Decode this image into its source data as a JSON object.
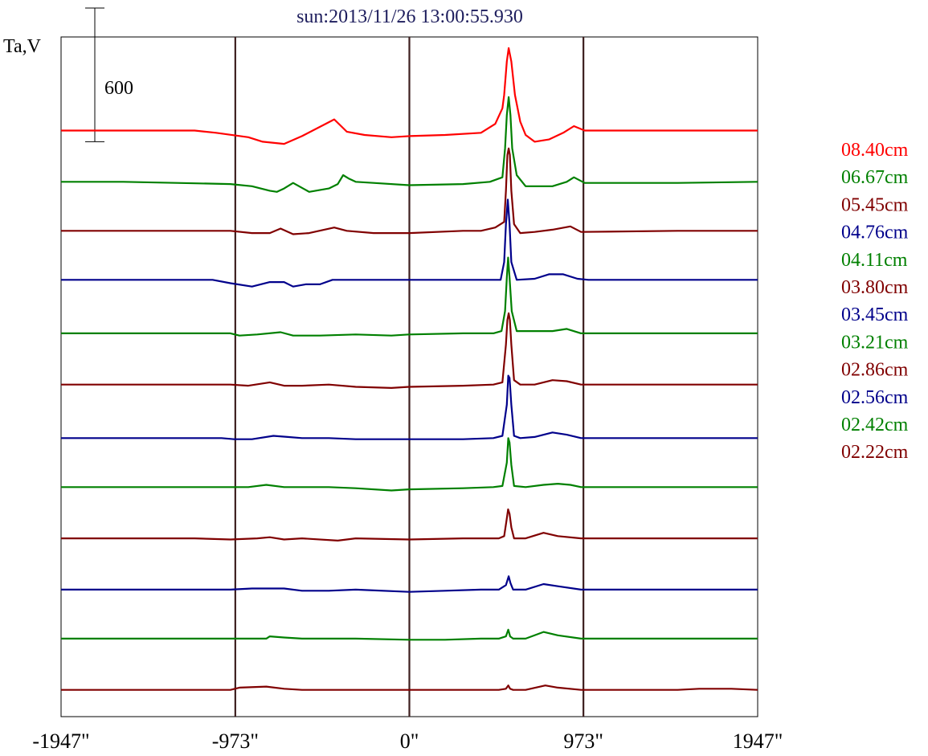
{
  "chart_data": {
    "type": "line",
    "title": "sun:2013/11/26 13:00:55.930",
    "ylabel": "Ta,V",
    "xlabel": "",
    "xlim": [
      -1947,
      1947
    ],
    "x_tick_values": [
      -1947,
      -973,
      0,
      973,
      1947
    ],
    "x_tick_labels": [
      "-1947\"",
      "-973\"",
      "0\"",
      "973\"",
      "1947\""
    ],
    "vertical_markers": [
      -973,
      0,
      973
    ],
    "scale_bar": {
      "label": "600",
      "value": 600
    },
    "grid": false,
    "legend_position": "right",
    "offset_step": 230,
    "ylim": [
      -100,
      2950
    ],
    "series": [
      {
        "name": "08.40cm",
        "color": "#ff0000",
        "offset": 2530,
        "points": [
          [
            -1947,
            0
          ],
          [
            -1200,
            0
          ],
          [
            -1080,
            -10
          ],
          [
            -900,
            -30
          ],
          [
            -820,
            -50
          ],
          [
            -700,
            -60
          ],
          [
            -600,
            -25
          ],
          [
            -420,
            50
          ],
          [
            -350,
            -5
          ],
          [
            -250,
            -20
          ],
          [
            -100,
            -30
          ],
          [
            0,
            -25
          ],
          [
            200,
            -20
          ],
          [
            400,
            -10
          ],
          [
            480,
            30
          ],
          [
            520,
            100
          ],
          [
            530,
            160
          ],
          [
            545,
            310
          ],
          [
            555,
            370
          ],
          [
            570,
            310
          ],
          [
            590,
            160
          ],
          [
            620,
            40
          ],
          [
            650,
            -20
          ],
          [
            700,
            -50
          ],
          [
            780,
            -40
          ],
          [
            860,
            -10
          ],
          [
            920,
            20
          ],
          [
            980,
            0
          ],
          [
            1500,
            0
          ],
          [
            1947,
            0
          ]
        ]
      },
      {
        "name": "06.67cm",
        "color": "#008000",
        "offset": 2300,
        "points": [
          [
            -1947,
            0
          ],
          [
            -1600,
            0
          ],
          [
            -1300,
            -5
          ],
          [
            -1000,
            -10
          ],
          [
            -880,
            -20
          ],
          [
            -780,
            -40
          ],
          [
            -740,
            -45
          ],
          [
            -700,
            -30
          ],
          [
            -650,
            -5
          ],
          [
            -560,
            -45
          ],
          [
            -450,
            -30
          ],
          [
            -400,
            -10
          ],
          [
            -370,
            30
          ],
          [
            -340,
            15
          ],
          [
            -300,
            0
          ],
          [
            -200,
            -5
          ],
          [
            0,
            -15
          ],
          [
            300,
            -10
          ],
          [
            450,
            0
          ],
          [
            520,
            20
          ],
          [
            535,
            150
          ],
          [
            545,
            300
          ],
          [
            555,
            380
          ],
          [
            565,
            300
          ],
          [
            575,
            150
          ],
          [
            600,
            30
          ],
          [
            650,
            -20
          ],
          [
            700,
            -20
          ],
          [
            800,
            -20
          ],
          [
            880,
            0
          ],
          [
            920,
            20
          ],
          [
            980,
            -5
          ],
          [
            1500,
            -5
          ],
          [
            1947,
            0
          ]
        ]
      },
      {
        "name": "05.45cm",
        "color": "#800000",
        "offset": 2080,
        "points": [
          [
            -1947,
            0
          ],
          [
            -1000,
            0
          ],
          [
            -880,
            -10
          ],
          [
            -780,
            -10
          ],
          [
            -720,
            10
          ],
          [
            -650,
            -15
          ],
          [
            -560,
            -10
          ],
          [
            -420,
            15
          ],
          [
            -350,
            0
          ],
          [
            -200,
            -10
          ],
          [
            0,
            -10
          ],
          [
            300,
            0
          ],
          [
            400,
            0
          ],
          [
            480,
            15
          ],
          [
            530,
            40
          ],
          [
            540,
            180
          ],
          [
            548,
            340
          ],
          [
            555,
            370
          ],
          [
            562,
            340
          ],
          [
            570,
            180
          ],
          [
            585,
            30
          ],
          [
            620,
            -10
          ],
          [
            700,
            -5
          ],
          [
            800,
            5
          ],
          [
            900,
            20
          ],
          [
            960,
            -5
          ],
          [
            1500,
            0
          ],
          [
            1947,
            0
          ]
        ]
      },
      {
        "name": "04.76cm",
        "color": "#00008b",
        "offset": 1860,
        "points": [
          [
            -1947,
            0
          ],
          [
            -1100,
            0
          ],
          [
            -1000,
            -15
          ],
          [
            -880,
            -30
          ],
          [
            -780,
            -10
          ],
          [
            -700,
            -10
          ],
          [
            -650,
            -30
          ],
          [
            -580,
            -20
          ],
          [
            -500,
            -20
          ],
          [
            -430,
            0
          ],
          [
            -400,
            0
          ],
          [
            0,
            0
          ],
          [
            300,
            0
          ],
          [
            420,
            0
          ],
          [
            510,
            0
          ],
          [
            530,
            80
          ],
          [
            540,
            250
          ],
          [
            550,
            360
          ],
          [
            560,
            250
          ],
          [
            570,
            80
          ],
          [
            600,
            0
          ],
          [
            700,
            5
          ],
          [
            780,
            25
          ],
          [
            860,
            25
          ],
          [
            940,
            5
          ],
          [
            1000,
            0
          ],
          [
            1500,
            0
          ],
          [
            1947,
            0
          ]
        ]
      },
      {
        "name": "04.11cm",
        "color": "#008000",
        "offset": 1620,
        "points": [
          [
            -1947,
            0
          ],
          [
            -1000,
            0
          ],
          [
            -950,
            -10
          ],
          [
            -850,
            -5
          ],
          [
            -720,
            5
          ],
          [
            -650,
            -10
          ],
          [
            -500,
            -10
          ],
          [
            -300,
            -5
          ],
          [
            -100,
            -10
          ],
          [
            0,
            -5
          ],
          [
            300,
            0
          ],
          [
            470,
            0
          ],
          [
            515,
            10
          ],
          [
            535,
            100
          ],
          [
            545,
            250
          ],
          [
            552,
            340
          ],
          [
            560,
            250
          ],
          [
            572,
            100
          ],
          [
            600,
            10
          ],
          [
            700,
            10
          ],
          [
            800,
            10
          ],
          [
            880,
            20
          ],
          [
            960,
            0
          ],
          [
            1500,
            0
          ],
          [
            1947,
            0
          ]
        ]
      },
      {
        "name": "03.80cm",
        "color": "#800000",
        "offset": 1390,
        "points": [
          [
            -1947,
            0
          ],
          [
            -1000,
            0
          ],
          [
            -900,
            -5
          ],
          [
            -780,
            10
          ],
          [
            -700,
            -5
          ],
          [
            -600,
            -5
          ],
          [
            -450,
            0
          ],
          [
            -300,
            -10
          ],
          [
            -100,
            -15
          ],
          [
            0,
            -10
          ],
          [
            300,
            -5
          ],
          [
            470,
            0
          ],
          [
            520,
            10
          ],
          [
            540,
            180
          ],
          [
            548,
            290
          ],
          [
            555,
            320
          ],
          [
            562,
            290
          ],
          [
            570,
            180
          ],
          [
            585,
            20
          ],
          [
            620,
            0
          ],
          [
            700,
            0
          ],
          [
            800,
            20
          ],
          [
            880,
            15
          ],
          [
            960,
            0
          ],
          [
            1500,
            0
          ],
          [
            1947,
            0
          ]
        ]
      },
      {
        "name": "03.45cm",
        "color": "#00008b",
        "offset": 1150,
        "points": [
          [
            -1947,
            0
          ],
          [
            -1050,
            0
          ],
          [
            -980,
            -5
          ],
          [
            -880,
            -5
          ],
          [
            -760,
            10
          ],
          [
            -680,
            5
          ],
          [
            -600,
            0
          ],
          [
            -450,
            0
          ],
          [
            -300,
            -5
          ],
          [
            0,
            -5
          ],
          [
            300,
            -5
          ],
          [
            470,
            0
          ],
          [
            520,
            10
          ],
          [
            545,
            150
          ],
          [
            553,
            280
          ],
          [
            560,
            270
          ],
          [
            570,
            150
          ],
          [
            585,
            10
          ],
          [
            620,
            0
          ],
          [
            700,
            5
          ],
          [
            800,
            25
          ],
          [
            880,
            15
          ],
          [
            960,
            0
          ],
          [
            1500,
            0
          ],
          [
            1947,
            0
          ]
        ]
      },
      {
        "name": "03.21cm",
        "color": "#008000",
        "offset": 930,
        "points": [
          [
            -1947,
            0
          ],
          [
            -1000,
            0
          ],
          [
            -900,
            0
          ],
          [
            -800,
            10
          ],
          [
            -700,
            0
          ],
          [
            -600,
            0
          ],
          [
            -450,
            0
          ],
          [
            -300,
            -5
          ],
          [
            -100,
            -15
          ],
          [
            0,
            -10
          ],
          [
            300,
            -5
          ],
          [
            470,
            0
          ],
          [
            520,
            5
          ],
          [
            545,
            110
          ],
          [
            553,
            220
          ],
          [
            560,
            200
          ],
          [
            570,
            100
          ],
          [
            585,
            5
          ],
          [
            650,
            0
          ],
          [
            750,
            10
          ],
          [
            830,
            15
          ],
          [
            900,
            10
          ],
          [
            960,
            0
          ],
          [
            1500,
            0
          ],
          [
            1947,
            0
          ]
        ]
      },
      {
        "name": "02.86cm",
        "color": "#800000",
        "offset": 700,
        "points": [
          [
            -1947,
            0
          ],
          [
            -1200,
            0
          ],
          [
            -1000,
            -5
          ],
          [
            -850,
            0
          ],
          [
            -780,
            5
          ],
          [
            -700,
            -5
          ],
          [
            -600,
            0
          ],
          [
            -400,
            -10
          ],
          [
            -300,
            0
          ],
          [
            0,
            -5
          ],
          [
            300,
            0
          ],
          [
            500,
            0
          ],
          [
            530,
            10
          ],
          [
            543,
            80
          ],
          [
            552,
            130
          ],
          [
            560,
            110
          ],
          [
            570,
            50
          ],
          [
            585,
            0
          ],
          [
            650,
            0
          ],
          [
            750,
            25
          ],
          [
            830,
            10
          ],
          [
            960,
            0
          ],
          [
            1500,
            0
          ],
          [
            1947,
            0
          ]
        ]
      },
      {
        "name": "02.56cm",
        "color": "#00008b",
        "offset": 470,
        "points": [
          [
            -1947,
            0
          ],
          [
            -1200,
            0
          ],
          [
            -1000,
            0
          ],
          [
            -880,
            5
          ],
          [
            -800,
            5
          ],
          [
            -700,
            5
          ],
          [
            -600,
            -5
          ],
          [
            -450,
            -5
          ],
          [
            -300,
            0
          ],
          [
            0,
            -10
          ],
          [
            200,
            -5
          ],
          [
            400,
            0
          ],
          [
            500,
            0
          ],
          [
            540,
            20
          ],
          [
            555,
            60
          ],
          [
            565,
            30
          ],
          [
            580,
            0
          ],
          [
            650,
            0
          ],
          [
            750,
            25
          ],
          [
            830,
            15
          ],
          [
            960,
            0
          ],
          [
            1500,
            0
          ],
          [
            1947,
            0
          ]
        ]
      },
      {
        "name": "02.42cm",
        "color": "#008000",
        "offset": 250,
        "points": [
          [
            -1947,
            0
          ],
          [
            -800,
            0
          ],
          [
            -780,
            10
          ],
          [
            -700,
            5
          ],
          [
            -600,
            0
          ],
          [
            -300,
            0
          ],
          [
            0,
            -5
          ],
          [
            200,
            -5
          ],
          [
            400,
            0
          ],
          [
            500,
            0
          ],
          [
            540,
            10
          ],
          [
            553,
            40
          ],
          [
            563,
            10
          ],
          [
            580,
            0
          ],
          [
            650,
            0
          ],
          [
            750,
            30
          ],
          [
            830,
            15
          ],
          [
            960,
            0
          ],
          [
            1500,
            0
          ],
          [
            1947,
            0
          ]
        ]
      },
      {
        "name": "02.22cm",
        "color": "#800000",
        "offset": 20,
        "points": [
          [
            -1947,
            0
          ],
          [
            -1000,
            0
          ],
          [
            -950,
            10
          ],
          [
            -800,
            15
          ],
          [
            -700,
            5
          ],
          [
            -600,
            0
          ],
          [
            -400,
            0
          ],
          [
            0,
            0
          ],
          [
            300,
            0
          ],
          [
            500,
            0
          ],
          [
            540,
            5
          ],
          [
            553,
            20
          ],
          [
            563,
            5
          ],
          [
            580,
            0
          ],
          [
            650,
            0
          ],
          [
            760,
            20
          ],
          [
            830,
            10
          ],
          [
            960,
            0
          ],
          [
            1500,
            0
          ],
          [
            1620,
            5
          ],
          [
            1800,
            5
          ],
          [
            1947,
            0
          ]
        ]
      }
    ]
  }
}
